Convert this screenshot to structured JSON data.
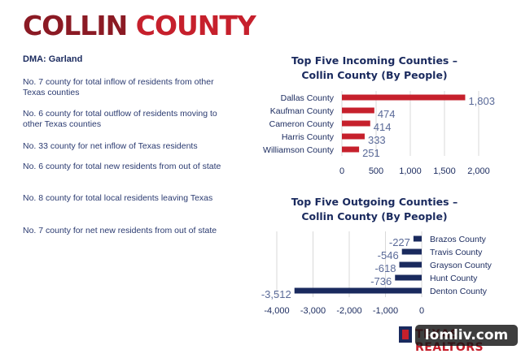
{
  "header": {
    "title_part1": "COLLIN",
    "title_part2": "COUNTY",
    "dma": "DMA: Garland"
  },
  "stats": [
    "No. 7 county for total inflow of residents from other Texas counties",
    "No. 6 county for total outflow of residents moving to other Texas counties",
    "No. 33 county for net inflow of Texas residents",
    "No. 6 county for total new residents from out of state",
    "No. 8 county for total local residents leaving Texas",
    "No. 7 county for net new residents from out of state"
  ],
  "logo": {
    "text": "TEXAS REALTORS"
  },
  "watermark": "lomliv.com",
  "colors": {
    "incoming": "#c6202c",
    "outgoing": "#1a2a5e",
    "title_dark_red": "#8b1a24",
    "text_navy": "#1a2a5e"
  },
  "chart_data": [
    {
      "type": "bar",
      "orientation": "horizontal",
      "title": "Top Five Incoming Counties – Collin County (By People)",
      "title_line1": "Top Five Incoming Counties –",
      "title_line2": "Collin County (By People)",
      "categories": [
        "Dallas County",
        "Kaufman County",
        "Cameron County",
        "Harris County",
        "Williamson County"
      ],
      "values": [
        1803,
        474,
        414,
        333,
        251
      ],
      "value_labels": [
        "1,803",
        "474",
        "414",
        "333",
        "251"
      ],
      "xlim": [
        0,
        2000
      ],
      "ticks": [
        0,
        500,
        1000,
        1500,
        2000
      ],
      "tick_labels": [
        "0",
        "500",
        "1,000",
        "1,500",
        "2,000"
      ],
      "grid": true,
      "legend": "none"
    },
    {
      "type": "bar",
      "orientation": "horizontal",
      "title": "Top Five Outgoing Counties – Collin County (By People)",
      "title_line1": "Top Five Outgoing Counties –",
      "title_line2": "Collin County (By People)",
      "categories": [
        "Brazos County",
        "Travis County",
        "Grayson County",
        "Hunt County",
        "Denton County"
      ],
      "values": [
        -227,
        -546,
        -618,
        -736,
        -3512
      ],
      "value_labels": [
        "-227",
        "-546",
        "-618",
        "-736",
        "-3,512"
      ],
      "xlim": [
        -4000,
        0
      ],
      "ticks": [
        -4000,
        -3000,
        -2000,
        -1000,
        0
      ],
      "tick_labels": [
        "-4,000",
        "-3,000",
        "-2,000",
        "-1,000",
        "0"
      ],
      "grid": true,
      "legend": "none"
    }
  ]
}
